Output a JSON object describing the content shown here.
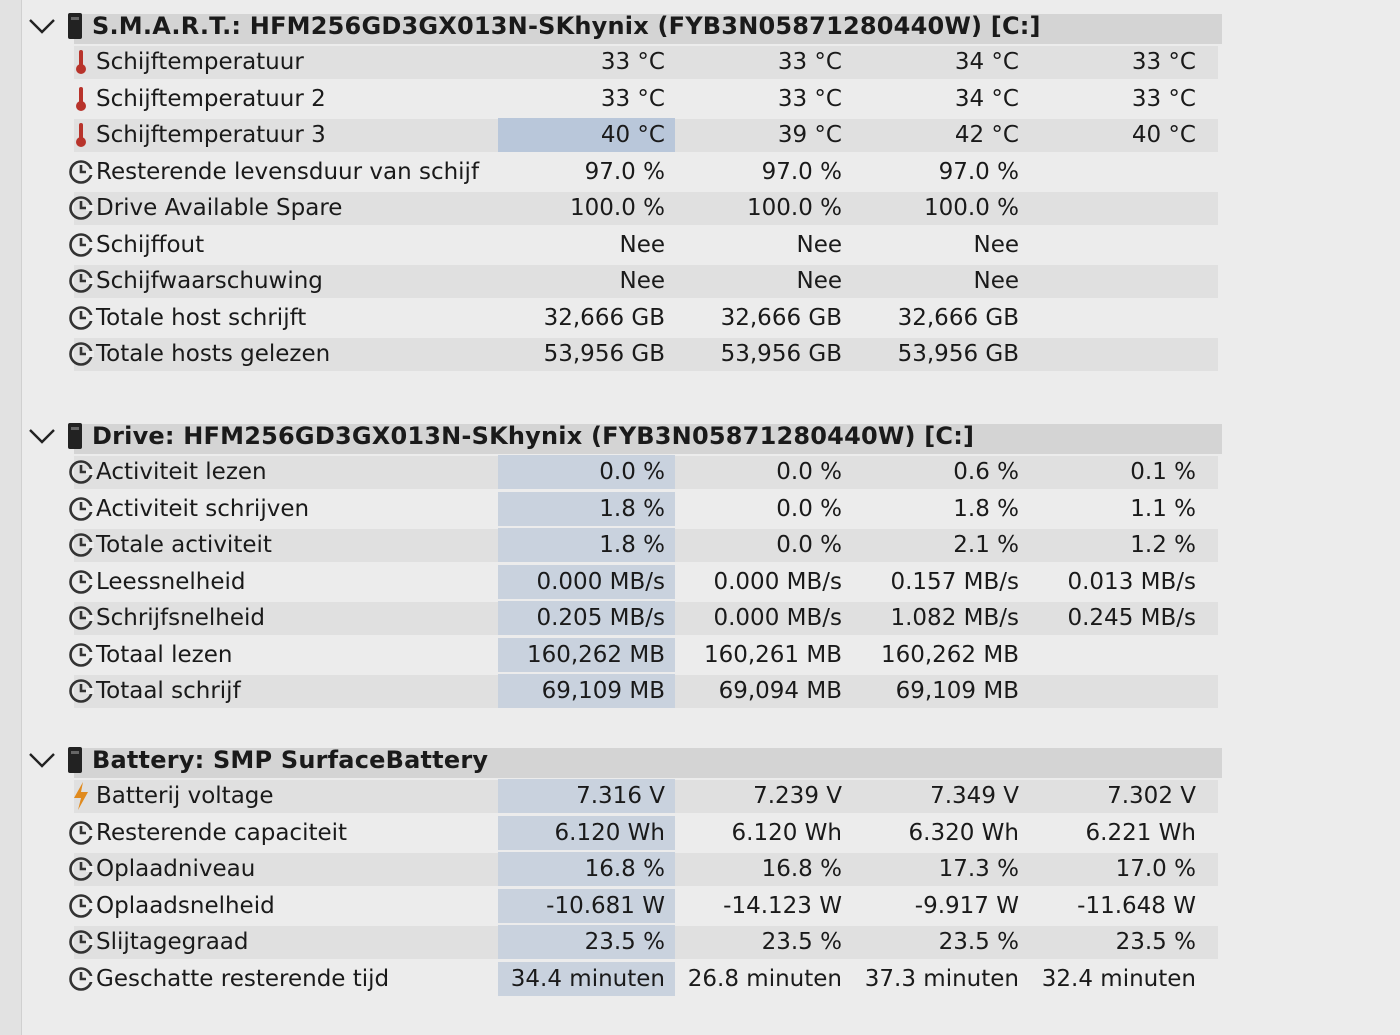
{
  "sections": [
    {
      "title": "S.M.A.R.T.: HFM256GD3GX013N-SKhynix (FYB3N05871280440W) [C:]",
      "rows": [
        {
          "label": "Schijftemperatuur",
          "icon": "thermometer-icon",
          "values": [
            "33 °C",
            "33 °C",
            "34 °C",
            "33 °C"
          ]
        },
        {
          "label": "Schijftemperatuur 2",
          "icon": "thermometer-icon",
          "values": [
            "33 °C",
            "33 °C",
            "34 °C",
            "33 °C"
          ]
        },
        {
          "label": "Schijftemperatuur 3",
          "icon": "thermometer-icon",
          "values": [
            "40 °C",
            "39 °C",
            "42 °C",
            "40 °C"
          ]
        },
        {
          "label": "Resterende levensduur van schijf",
          "icon": "clock-icon",
          "values": [
            "97.0 %",
            "97.0 %",
            "97.0 %",
            ""
          ]
        },
        {
          "label": "Drive Available Spare",
          "icon": "clock-icon",
          "values": [
            "100.0 %",
            "100.0 %",
            "100.0 %",
            ""
          ]
        },
        {
          "label": "Schijffout",
          "icon": "clock-icon",
          "values": [
            "Nee",
            "Nee",
            "Nee",
            ""
          ]
        },
        {
          "label": "Schijfwaarschuwing",
          "icon": "clock-icon",
          "values": [
            "Nee",
            "Nee",
            "Nee",
            ""
          ]
        },
        {
          "label": "Totale host schrijft",
          "icon": "clock-icon",
          "values": [
            "32,666 GB",
            "32,666 GB",
            "32,666 GB",
            ""
          ]
        },
        {
          "label": "Totale hosts gelezen",
          "icon": "clock-icon",
          "values": [
            "53,956 GB",
            "53,956 GB",
            "53,956 GB",
            ""
          ]
        }
      ]
    },
    {
      "title": "Drive: HFM256GD3GX013N-SKhynix (FYB3N05871280440W) [C:]",
      "rows": [
        {
          "label": "Activiteit lezen",
          "icon": "clock-icon",
          "values": [
            "0.0 %",
            "0.0 %",
            "0.6 %",
            "0.1 %"
          ]
        },
        {
          "label": "Activiteit schrijven",
          "icon": "clock-icon",
          "values": [
            "1.8 %",
            "0.0 %",
            "1.8 %",
            "1.1 %"
          ]
        },
        {
          "label": "Totale activiteit",
          "icon": "clock-icon",
          "values": [
            "1.8 %",
            "0.0 %",
            "2.1 %",
            "1.2 %"
          ]
        },
        {
          "label": "Leessnelheid",
          "icon": "clock-icon",
          "values": [
            "0.000 MB/s",
            "0.000 MB/s",
            "0.157 MB/s",
            "0.013 MB/s"
          ]
        },
        {
          "label": "Schrijfsnelheid",
          "icon": "clock-icon",
          "values": [
            "0.205 MB/s",
            "0.000 MB/s",
            "1.082 MB/s",
            "0.245 MB/s"
          ]
        },
        {
          "label": "Totaal lezen",
          "icon": "clock-icon",
          "values": [
            "160,262 MB",
            "160,261 MB",
            "160,262 MB",
            ""
          ]
        },
        {
          "label": "Totaal schrijf",
          "icon": "clock-icon",
          "values": [
            "69,109 MB",
            "69,094 MB",
            "69,109 MB",
            ""
          ]
        }
      ]
    },
    {
      "title": "Battery: SMP SurfaceBattery",
      "rows": [
        {
          "label": "Batterij voltage",
          "icon": "lightning-icon",
          "values": [
            "7.316 V",
            "7.239 V",
            "7.349 V",
            "7.302 V"
          ]
        },
        {
          "label": "Resterende capaciteit",
          "icon": "clock-icon",
          "values": [
            "6.120 Wh",
            "6.120 Wh",
            "6.320 Wh",
            "6.221 Wh"
          ]
        },
        {
          "label": "Oplaadniveau",
          "icon": "clock-icon",
          "values": [
            "16.8 %",
            "16.8 %",
            "17.3 %",
            "17.0 %"
          ]
        },
        {
          "label": "Oplaadsnelheid",
          "icon": "clock-icon",
          "values": [
            "-10.681 W",
            "-14.123 W",
            "-9.917 W",
            "-11.648 W"
          ]
        },
        {
          "label": "Slijtagegraad",
          "icon": "clock-icon",
          "values": [
            "23.5 %",
            "23.5 %",
            "23.5 %",
            "23.5 %"
          ]
        },
        {
          "label": "Geschatte resterende tijd",
          "icon": "clock-icon",
          "values": [
            "34.4 minuten",
            "26.8 minuten",
            "37.3 minuten",
            "32.4 minuten"
          ]
        }
      ]
    }
  ]
}
